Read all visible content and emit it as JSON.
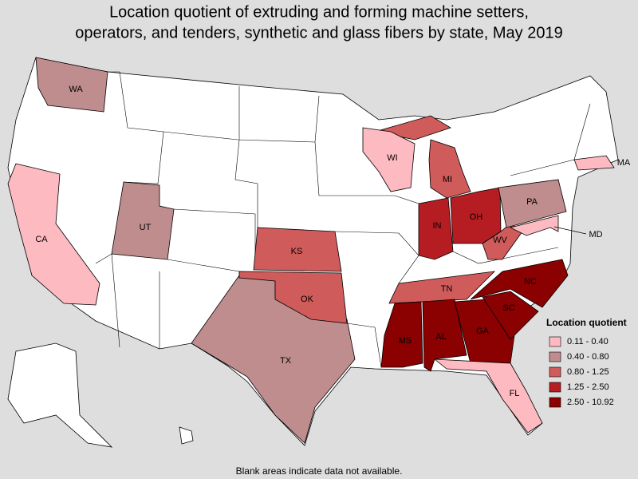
{
  "title_lines": [
    "Location quotient of extruding and forming machine setters,",
    "operators, and tenders, synthetic and glass fibers by state, May 2019"
  ],
  "legend": {
    "title": "Location quotient",
    "items": [
      {
        "label": "0.11 - 0.40",
        "color": "#fdbac1",
        "states": [
          "CA",
          "MD",
          "MA",
          "WI",
          "FL"
        ]
      },
      {
        "label": "0.40 - 0.80",
        "color": "#bf8d8d",
        "states": [
          "WA",
          "UT",
          "TX",
          "PA"
        ]
      },
      {
        "label": "0.80 - 1.25",
        "color": "#d05b5b",
        "states": [
          "KS",
          "OK",
          "TN",
          "MI",
          "WV"
        ]
      },
      {
        "label": "1.25 - 2.50",
        "color": "#b51d23",
        "states": [
          "IN",
          "OH"
        ]
      },
      {
        "label": "2.50 - 10.92",
        "color": "#8b0000",
        "states": [
          "MS",
          "AL",
          "GA",
          "SC",
          "NC"
        ]
      }
    ]
  },
  "footnote": "Blank areas indicate data not available."
}
